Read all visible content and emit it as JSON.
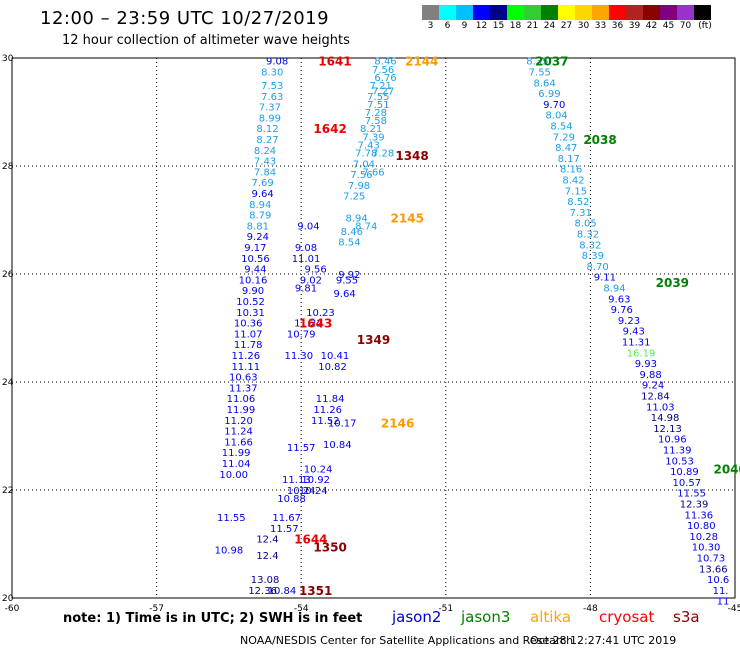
{
  "header": {
    "title": "12:00 – 23:59 UTC 10/27/2019",
    "subtitle": "12 hour collection of altimeter wave heights"
  },
  "color_scale": {
    "colors": [
      "#808080",
      "#00ffff",
      "#00bfff",
      "#0000ff",
      "#00008b",
      "#00ff00",
      "#32cd32",
      "#008000",
      "#ffff00",
      "#ffd700",
      "#ffa500",
      "#ff0000",
      "#b22222",
      "#8b0000",
      "#800080",
      "#9932cc",
      "#000000"
    ],
    "labels": [
      "3",
      "6",
      "9",
      "12",
      "15",
      "18",
      "21",
      "24",
      "27",
      "30",
      "33",
      "36",
      "39",
      "42",
      "45",
      "70",
      "(ft)"
    ]
  },
  "axes": {
    "x_ticks": [
      "-60",
      "-57",
      "-54",
      "-51",
      "-48",
      "-45"
    ],
    "y_ticks": [
      "30",
      "28",
      "26",
      "24",
      "22",
      "20"
    ]
  },
  "chart_data": {
    "type": "scatter",
    "xlabel": "",
    "ylabel": "",
    "xlim": [
      -60,
      -45
    ],
    "ylim": [
      20,
      30
    ],
    "track_labels": [
      {
        "text": "1641",
        "sat": "cryosat",
        "lon": -53.3,
        "lat": 29.95
      },
      {
        "text": "1642",
        "sat": "cryosat",
        "lon": -53.4,
        "lat": 28.7
      },
      {
        "text": "1643",
        "sat": "cryosat",
        "lon": -53.7,
        "lat": 25.1
      },
      {
        "text": "1644",
        "sat": "cryosat",
        "lon": -53.8,
        "lat": 21.1
      },
      {
        "text": "2144",
        "sat": "altika",
        "lon": -51.5,
        "lat": 29.95
      },
      {
        "text": "2145",
        "sat": "altika",
        "lon": -51.8,
        "lat": 27.05
      },
      {
        "text": "2146",
        "sat": "altika",
        "lon": -52.0,
        "lat": 23.25
      },
      {
        "text": "2037",
        "sat": "jason3",
        "lon": -48.8,
        "lat": 29.95
      },
      {
        "text": "2038",
        "sat": "jason3",
        "lon": -47.8,
        "lat": 28.5
      },
      {
        "text": "2039",
        "sat": "jason3",
        "lon": -46.3,
        "lat": 25.85
      },
      {
        "text": "2040",
        "sat": "jason3",
        "lon": -45.1,
        "lat": 22.4
      },
      {
        "text": "1348",
        "sat": "s3a",
        "lon": -51.7,
        "lat": 28.2
      },
      {
        "text": "1349",
        "sat": "s3a",
        "lon": -52.5,
        "lat": 24.8
      },
      {
        "text": "1350",
        "sat": "s3a",
        "lon": -53.4,
        "lat": 20.95
      },
      {
        "text": "1351",
        "sat": "s3a",
        "lon": -53.7,
        "lat": 20.15
      }
    ],
    "series": [
      {
        "name": "cryosat",
        "values": [
          [
            "9.08",
            -54.5,
            29.95
          ],
          [
            "8.30",
            -54.6,
            29.75
          ],
          [
            "7.53",
            -54.6,
            29.5
          ],
          [
            "7.63",
            -54.6,
            29.3
          ],
          [
            "7.37",
            -54.65,
            29.1
          ],
          [
            "8.99",
            -54.65,
            28.9
          ],
          [
            "8.12",
            -54.7,
            28.7
          ],
          [
            "8.27",
            -54.7,
            28.5
          ],
          [
            "8.24",
            -54.75,
            28.3
          ],
          [
            "7.43",
            -54.75,
            28.1
          ],
          [
            "7.84",
            -54.75,
            27.9
          ],
          [
            "7.69",
            -54.8,
            27.7
          ],
          [
            "9.64",
            -54.8,
            27.5
          ],
          [
            "8.94",
            -54.85,
            27.3
          ],
          [
            "8.79",
            -54.85,
            27.1
          ],
          [
            "8.81",
            -54.9,
            26.9
          ],
          [
            "9.24",
            -54.9,
            26.7
          ],
          [
            "9.17",
            -54.95,
            26.5
          ],
          [
            "10.56",
            -54.95,
            26.3
          ],
          [
            "9.44",
            -54.95,
            26.1
          ],
          [
            "10.16",
            -55.0,
            25.9
          ],
          [
            "9.90",
            -55.0,
            25.7
          ],
          [
            "10.52",
            -55.05,
            25.5
          ],
          [
            "10.31",
            -55.05,
            25.3
          ],
          [
            "10.36",
            -55.1,
            25.1
          ],
          [
            "11.07",
            -55.1,
            24.9
          ],
          [
            "11.78",
            -55.1,
            24.7
          ],
          [
            "11.26",
            -55.15,
            24.5
          ],
          [
            "11.11",
            -55.15,
            24.3
          ],
          [
            "10.63",
            -55.2,
            24.1
          ],
          [
            "11.37",
            -55.2,
            23.9
          ],
          [
            "11.06",
            -55.25,
            23.7
          ],
          [
            "11.99",
            -55.25,
            23.5
          ],
          [
            "11.20",
            -55.3,
            23.3
          ],
          [
            "11.24",
            -55.3,
            23.1
          ],
          [
            "11.66",
            -55.3,
            22.9
          ],
          [
            "11.99",
            -55.35,
            22.7
          ],
          [
            "11.04",
            -55.35,
            22.5
          ],
          [
            "10.00",
            -55.4,
            22.3
          ],
          [
            "11.55",
            -55.45,
            21.5
          ],
          [
            "10.98",
            -55.5,
            20.9
          ]
        ]
      },
      {
        "name": "jason2",
        "values": [
          [
            "9.04",
            -53.85,
            26.9
          ],
          [
            "9.08",
            -53.9,
            26.5
          ],
          [
            "11.01",
            -53.9,
            26.3
          ],
          [
            "9.56",
            -53.7,
            26.1
          ],
          [
            "9.02",
            -53.8,
            25.9
          ],
          [
            "9.81",
            -53.9,
            25.75
          ],
          [
            "10.23",
            -53.6,
            25.3
          ],
          [
            "11.22",
            -53.85,
            25.1
          ],
          [
            "10.79",
            -54.0,
            24.9
          ],
          [
            "11.30",
            -54.05,
            24.5
          ],
          [
            "11.57",
            -54.0,
            22.8
          ],
          [
            "11.13",
            -54.1,
            22.2
          ],
          [
            "10.88",
            -54.2,
            21.85
          ],
          [
            "11.67",
            -54.3,
            21.5
          ],
          [
            "11.57",
            -54.35,
            21.3
          ],
          [
            "10.84",
            -54.4,
            20.15
          ],
          [
            "10.24",
            -54.0,
            22.0
          ]
        ]
      },
      {
        "name": "jason3",
        "values": [
          [
            "8.35",
            -49.1,
            29.95
          ],
          [
            "7.55",
            -49.05,
            29.75
          ],
          [
            "8.64",
            -48.95,
            29.55
          ],
          [
            "6.99",
            -48.85,
            29.35
          ],
          [
            "9.70",
            -48.75,
            29.15
          ],
          [
            "8.04",
            -48.7,
            28.95
          ],
          [
            "8.54",
            -48.6,
            28.75
          ],
          [
            "7.29",
            -48.55,
            28.55
          ],
          [
            "8.47",
            -48.5,
            28.35
          ],
          [
            "8.17",
            -48.45,
            28.15
          ],
          [
            "8.16",
            -48.4,
            27.95
          ],
          [
            "8.42",
            -48.35,
            27.75
          ],
          [
            "7.15",
            -48.3,
            27.55
          ],
          [
            "8.52",
            -48.25,
            27.35
          ],
          [
            "7.31",
            -48.2,
            27.15
          ],
          [
            "8.05",
            -48.1,
            26.95
          ],
          [
            "8.32",
            -48.05,
            26.75
          ],
          [
            "8.32",
            -48.0,
            26.55
          ],
          [
            "8.39",
            -47.95,
            26.35
          ],
          [
            "8.70",
            -47.85,
            26.15
          ],
          [
            "9.11",
            -47.7,
            25.95
          ],
          [
            "8.94",
            -47.5,
            25.75
          ],
          [
            "9.63",
            -47.4,
            25.55
          ],
          [
            "9.76",
            -47.35,
            25.35
          ],
          [
            "9.23",
            -47.2,
            25.15
          ],
          [
            "9.43",
            -47.1,
            24.95
          ],
          [
            "11.31",
            -47.05,
            24.75
          ],
          [
            "16.19",
            -46.95,
            24.55
          ],
          [
            "9.93",
            -46.85,
            24.35
          ],
          [
            "9.88",
            -46.75,
            24.15
          ],
          [
            "9.24",
            -46.7,
            23.95
          ],
          [
            "12.84",
            -46.65,
            23.75
          ],
          [
            "11.03",
            -46.55,
            23.55
          ],
          [
            "14.98",
            -46.45,
            23.35
          ],
          [
            "12.13",
            -46.4,
            23.15
          ],
          [
            "10.96",
            -46.3,
            22.95
          ],
          [
            "11.39",
            -46.2,
            22.75
          ],
          [
            "10.53",
            -46.15,
            22.55
          ],
          [
            "10.89",
            -46.05,
            22.35
          ],
          [
            "10.57",
            -46.0,
            22.15
          ],
          [
            "11.55",
            -45.9,
            21.95
          ],
          [
            "12.39",
            -45.85,
            21.75
          ],
          [
            "11.36",
            -45.75,
            21.55
          ],
          [
            "10.80",
            -45.7,
            21.35
          ],
          [
            "10.28",
            -45.65,
            21.15
          ],
          [
            "10.30",
            -45.6,
            20.95
          ],
          [
            "10.73",
            -45.5,
            20.75
          ],
          [
            "13.66",
            -45.45,
            20.55
          ],
          [
            "10.6",
            -45.35,
            20.35
          ],
          [
            "11.",
            -45.3,
            20.15
          ],
          [
            "11",
            -45.25,
            19.95
          ]
        ]
      },
      {
        "name": "altika",
        "values": [
          [
            "8.46",
            -52.25,
            29.95
          ],
          [
            "7.56",
            -52.3,
            29.8
          ],
          [
            "6.76",
            -52.25,
            29.65
          ],
          [
            "7.21",
            -52.35,
            29.5
          ],
          [
            "7.27",
            -52.3,
            29.4
          ],
          [
            "7.55",
            -52.4,
            29.3
          ],
          [
            "7.51",
            -52.4,
            29.15
          ],
          [
            "7.28",
            -52.45,
            29.0
          ],
          [
            "7.58",
            -52.45,
            28.85
          ],
          [
            "8.21",
            -52.55,
            28.7
          ],
          [
            "7.39",
            -52.5,
            28.55
          ],
          [
            "7.43",
            -52.6,
            28.4
          ],
          [
            "7.78",
            -52.65,
            28.25
          ],
          [
            "7.04",
            -52.7,
            28.05
          ],
          [
            "7.56",
            -52.75,
            27.85
          ],
          [
            "7.98",
            -52.8,
            27.65
          ],
          [
            "7.25",
            -52.9,
            27.45
          ],
          [
            "8.94",
            -52.85,
            27.05
          ],
          [
            "8.46",
            -52.95,
            26.8
          ],
          [
            "8.54",
            -53.0,
            26.6
          ],
          [
            "9.55",
            -53.05,
            25.9
          ],
          [
            "9.64",
            -53.1,
            25.65
          ],
          [
            "10.17",
            -53.15,
            23.25
          ],
          [
            "10.84",
            -53.25,
            22.85
          ],
          [
            "12.4",
            -54.7,
            21.1
          ],
          [
            "12.4",
            -54.7,
            20.8
          ],
          [
            "13.08",
            -54.75,
            20.35
          ],
          [
            "12.36",
            -54.8,
            20.15
          ]
        ]
      },
      {
        "name": "s3a",
        "values": [
          [
            "7.28",
            -52.3,
            28.25
          ],
          [
            "7.66",
            -52.5,
            27.9
          ],
          [
            "8.74",
            -52.65,
            26.9
          ],
          [
            "9.92",
            -53.0,
            26.0
          ],
          [
            "10.41",
            -53.3,
            24.5
          ],
          [
            "10.82",
            -53.35,
            24.3
          ],
          [
            "11.84",
            -53.4,
            23.7
          ],
          [
            "11.26",
            -53.45,
            23.5
          ],
          [
            "11.52",
            -53.5,
            23.3
          ],
          [
            "10.24",
            -53.65,
            22.4
          ],
          [
            "10.92",
            -53.7,
            22.2
          ],
          [
            "10.24",
            -53.75,
            22.0
          ]
        ]
      }
    ]
  },
  "note": {
    "text": "note: 1) Time is in UTC; 2) SWH is in feet"
  },
  "legend_sats": [
    {
      "label": "jason2",
      "color": "#0000cc"
    },
    {
      "label": "jason3",
      "color": "#008000"
    },
    {
      "label": "altika",
      "color": "#ffa500"
    },
    {
      "label": "cryosat",
      "color": "#ff0000"
    },
    {
      "label": "s3a",
      "color": "#8b0000"
    }
  ],
  "footer": {
    "credit": "NOAA/NESDIS Center for Satellite Applications and Research",
    "timestamp": "Oct 28 12:27:41 UTC 2019"
  }
}
